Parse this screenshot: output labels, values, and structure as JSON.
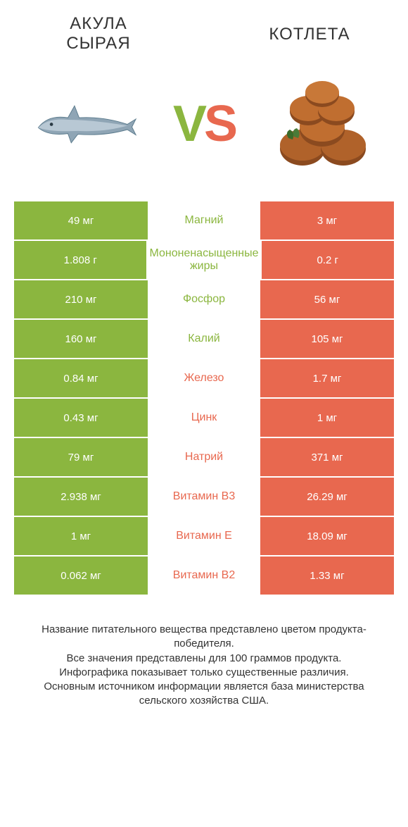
{
  "colors": {
    "left": "#8bb63f",
    "right": "#e8684f",
    "text_dark": "#333333",
    "white": "#ffffff"
  },
  "header": {
    "left_line1": "АКУЛА",
    "left_line2": "СЫРАЯ",
    "right": "КОТЛЕТА"
  },
  "vs": {
    "v": "V",
    "s": "S"
  },
  "rows": [
    {
      "nutrient": "Магний",
      "left": "49 мг",
      "right": "3 мг",
      "winner": "left"
    },
    {
      "nutrient": "Мононенасыщенные жиры",
      "left": "1.808 г",
      "right": "0.2 г",
      "winner": "left"
    },
    {
      "nutrient": "Фосфор",
      "left": "210 мг",
      "right": "56 мг",
      "winner": "left"
    },
    {
      "nutrient": "Калий",
      "left": "160 мг",
      "right": "105 мг",
      "winner": "left"
    },
    {
      "nutrient": "Железо",
      "left": "0.84 мг",
      "right": "1.7 мг",
      "winner": "right"
    },
    {
      "nutrient": "Цинк",
      "left": "0.43 мг",
      "right": "1 мг",
      "winner": "right"
    },
    {
      "nutrient": "Натрий",
      "left": "79 мг",
      "right": "371 мг",
      "winner": "right"
    },
    {
      "nutrient": "Витамин B3",
      "left": "2.938 мг",
      "right": "26.29 мг",
      "winner": "right"
    },
    {
      "nutrient": "Витамин E",
      "left": "1 мг",
      "right": "18.09 мг",
      "winner": "right"
    },
    {
      "nutrient": "Витамин B2",
      "left": "0.062 мг",
      "right": "1.33 мг",
      "winner": "right"
    }
  ],
  "footnote": {
    "l1": "Название питательного вещества представлено цветом продукта-победителя.",
    "l2": "Все значения представлены для 100 граммов продукта.",
    "l3": "Инфографика показывает только существенные различия.",
    "l4": "Основным источником информации является база министерства сельского хозяйства США."
  }
}
